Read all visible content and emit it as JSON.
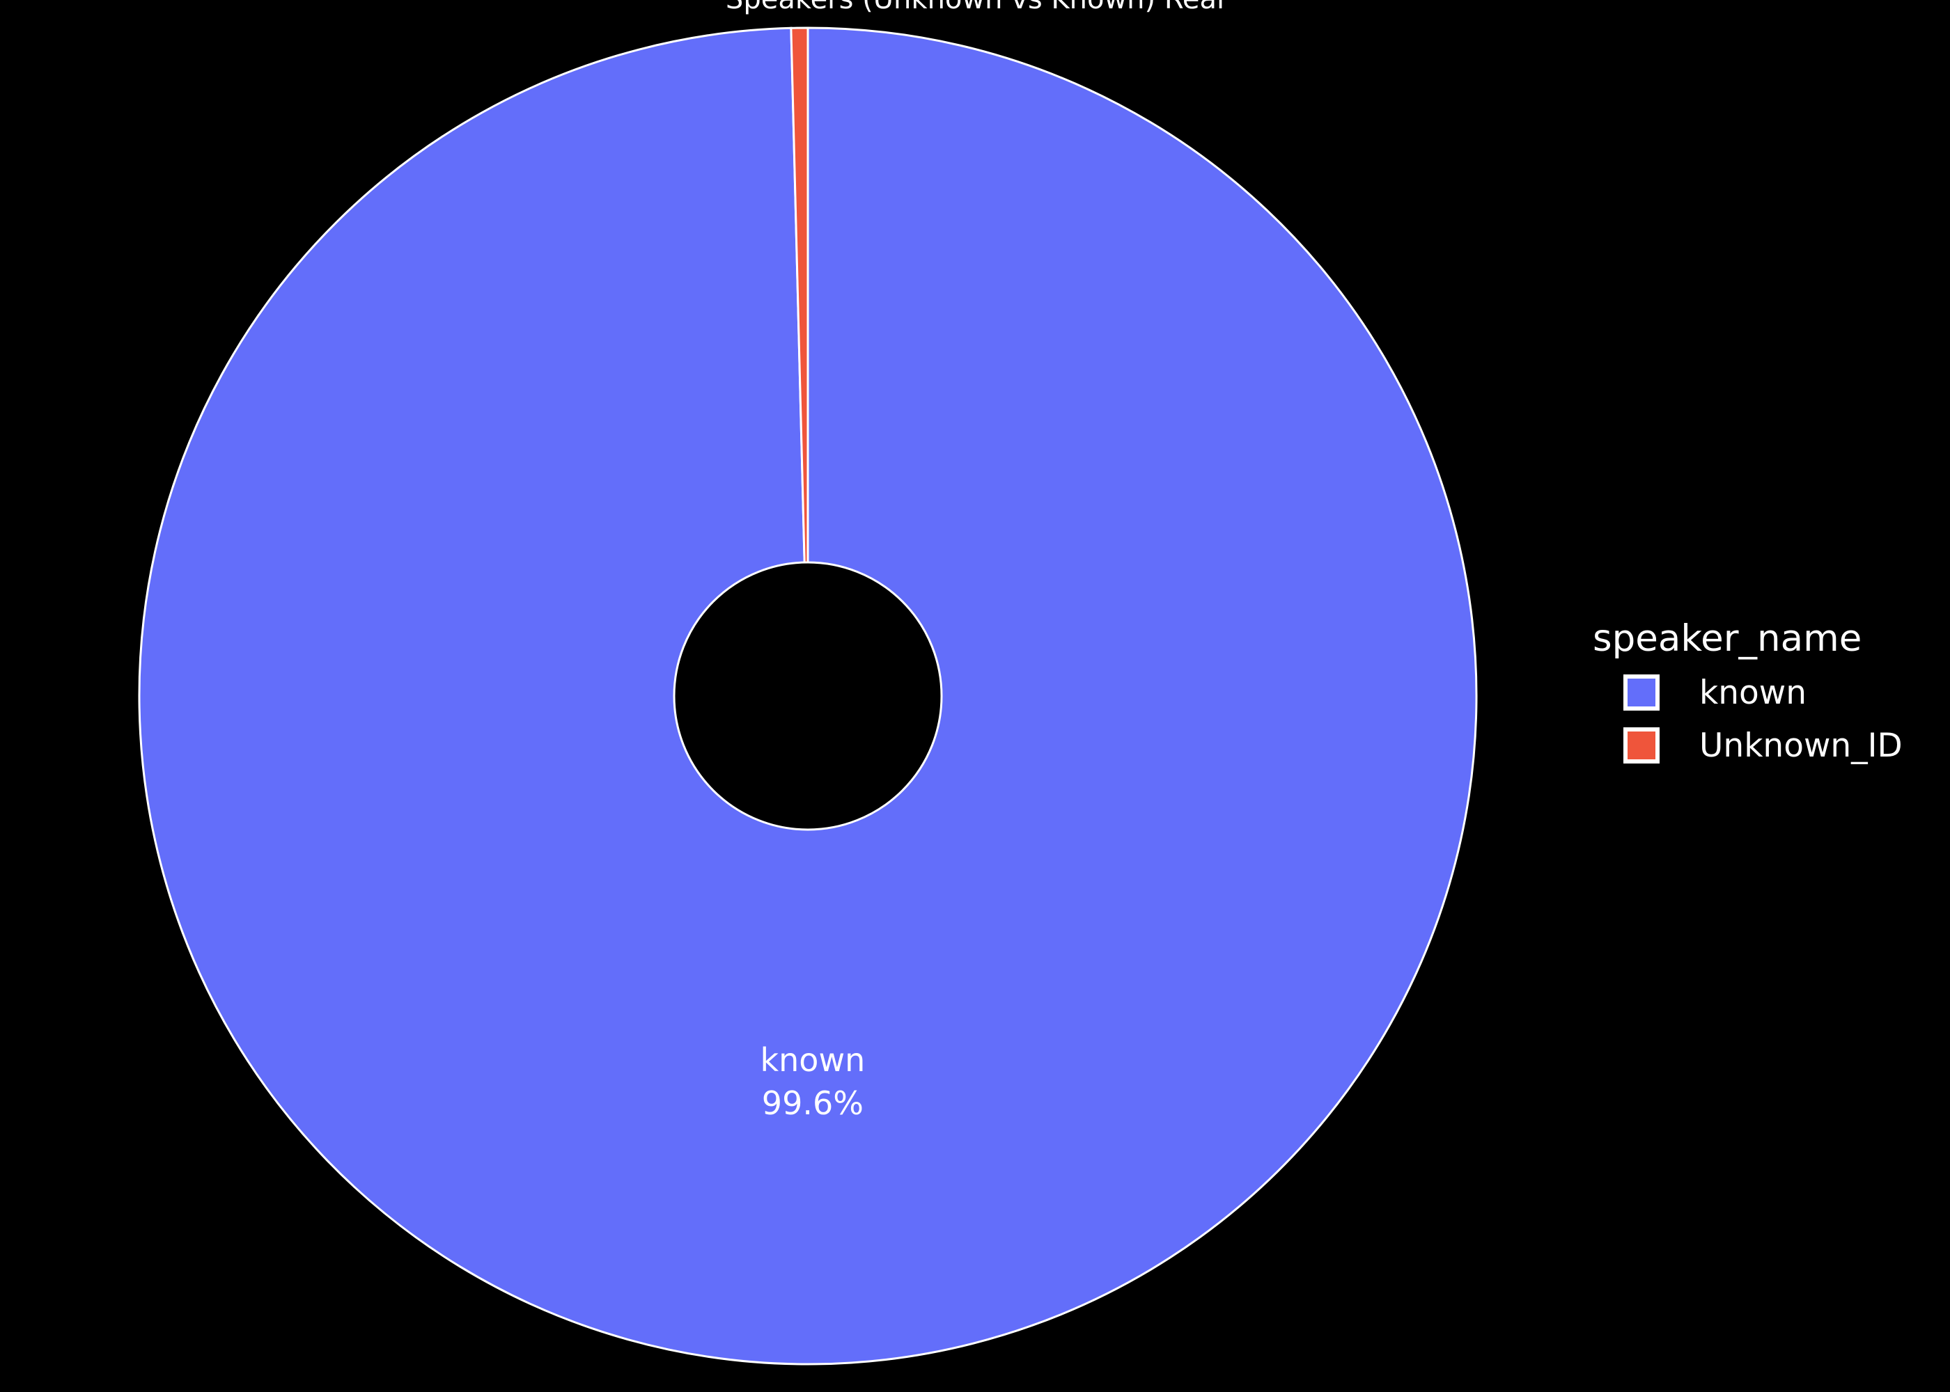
{
  "chart_data": {
    "type": "pie",
    "hole": true,
    "title": "Speakers (Unknown vs Known) Real",
    "legend_title": "speaker_name",
    "legend_position": "right",
    "categories": [
      "known",
      "Unknown_ID"
    ],
    "values": [
      99.6,
      0.4
    ],
    "percent_labels": [
      "99.6%",
      ""
    ],
    "colors": [
      "#636efa",
      "#ef553b"
    ],
    "outline_color": "#ffffff",
    "background": "#000000"
  }
}
